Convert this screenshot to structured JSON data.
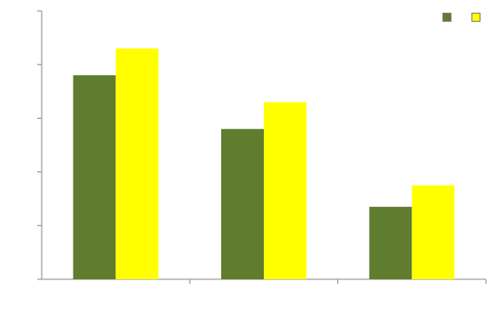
{
  "chart_data": {
    "type": "bar",
    "title": "",
    "xlabel": "",
    "ylabel": "",
    "ylim": [
      0,
      50
    ],
    "yticks": [
      0,
      10,
      20,
      30,
      40,
      50
    ],
    "ytick_labels": [
      "",
      "",
      "",
      "",
      "",
      ""
    ],
    "categories": [
      "",
      "",
      ""
    ],
    "series": [
      {
        "name": "",
        "color": "#5f7c2f",
        "values": [
          38,
          28,
          13.5
        ],
        "labels": [
          "",
          "",
          ""
        ]
      },
      {
        "name": "",
        "color": "#ffff00",
        "values": [
          43,
          33,
          17.5
        ],
        "labels": [
          "",
          "",
          ""
        ]
      }
    ],
    "legend_position": "top-right",
    "grid": false
  }
}
